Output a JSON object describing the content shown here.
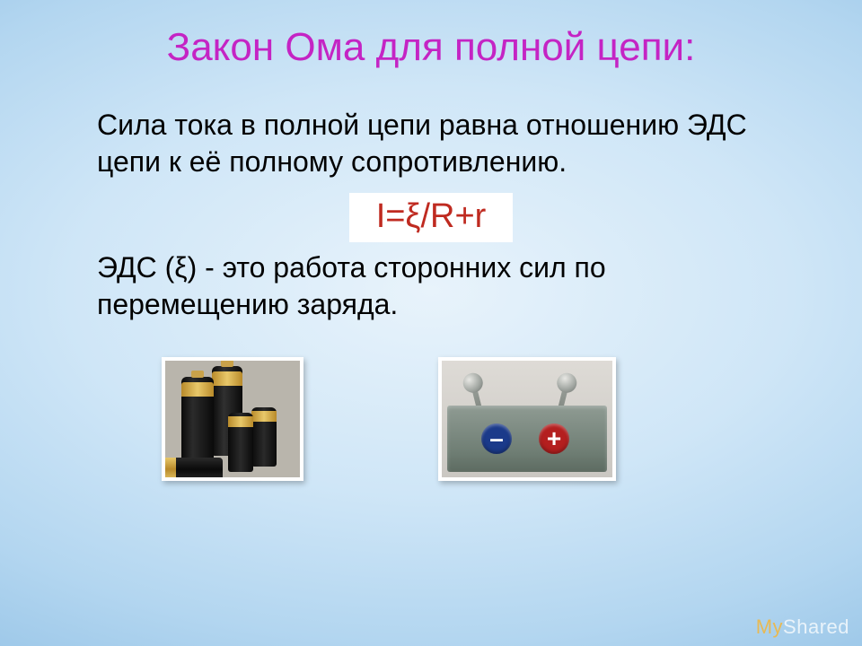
{
  "title": {
    "text": "Закон Ома для полной цепи:",
    "color": "#c424c4",
    "fontsize": 44
  },
  "paragraph1": {
    "text": "Сила тока в полной цепи равна отношению ЭДС цепи к её полному сопротивлению.",
    "color": "#000000",
    "fontsize": 32
  },
  "formula": {
    "text": "I=ξ/R+r",
    "color": "#bf2a20",
    "background": "#ffffff",
    "fontsize": 38
  },
  "paragraph2": {
    "text": "ЭДС (ξ) - это работа сторонних сил по перемещению заряда.",
    "color": "#000000",
    "fontsize": 32
  },
  "images": {
    "left": {
      "name": "batteries-photo",
      "alt": "Батарейки"
    },
    "right": {
      "name": "electrostatic-machine-photo",
      "alt": "Источник тока с клеммами + и −",
      "minus_color": "#1b3a8a",
      "plus_color": "#b41f1f"
    }
  },
  "watermark": {
    "prefix": "My",
    "suffix": "Shared"
  },
  "background": {
    "gradient_inner": "#e8f3fb",
    "gradient_outer": "#7ab0da"
  }
}
